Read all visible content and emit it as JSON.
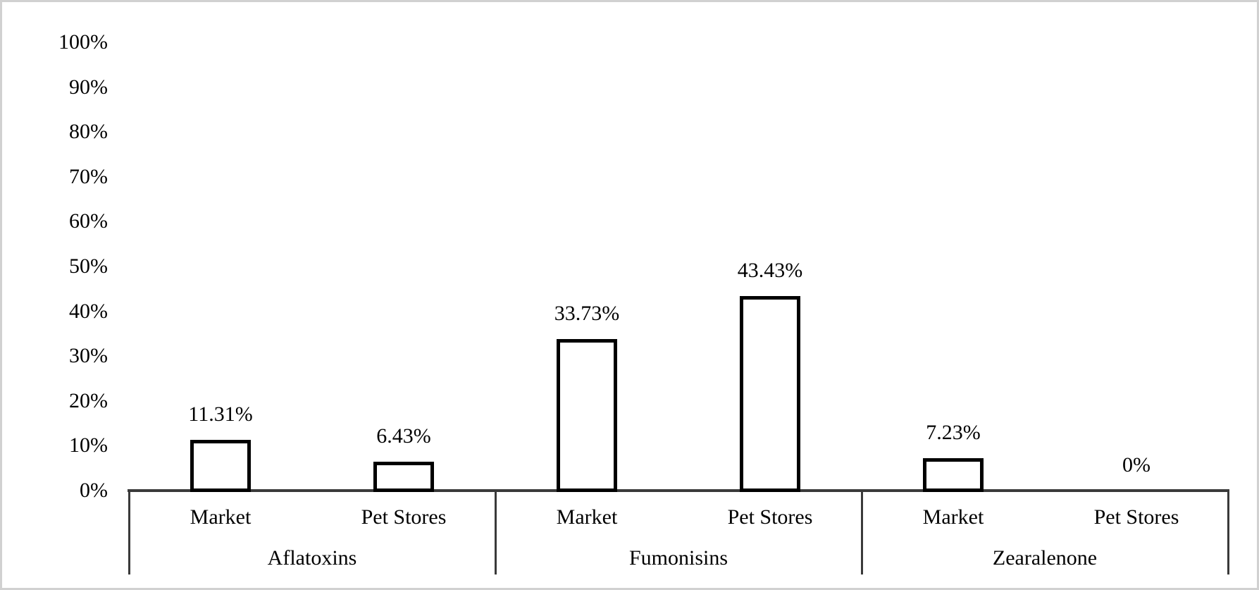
{
  "chart_data": {
    "type": "bar",
    "title": "",
    "xlabel": "",
    "ylabel": "",
    "y_axis": {
      "min": 0,
      "max": 100,
      "tick_step": 10,
      "tick_labels": [
        "100%",
        "90%",
        "80%",
        "70%",
        "60%",
        "50%",
        "40%",
        "30%",
        "20%",
        "10%",
        "0%"
      ],
      "grid": false
    },
    "legend": null,
    "sub_categories": [
      "Market",
      "Pet Stores"
    ],
    "groups": [
      {
        "label": "Aflatoxins",
        "bars": [
          {
            "category": "Market",
            "value": 11.31,
            "data_label": "11.31%"
          },
          {
            "category": "Pet Stores",
            "value": 6.43,
            "data_label": "6.43%"
          }
        ]
      },
      {
        "label": "Fumonisins",
        "bars": [
          {
            "category": "Market",
            "value": 33.73,
            "data_label": "33.73%"
          },
          {
            "category": "Pet Stores",
            "value": 43.43,
            "data_label": "43.43%"
          }
        ]
      },
      {
        "label": "Zearalenone",
        "bars": [
          {
            "category": "Market",
            "value": 7.23,
            "data_label": "7.23%"
          },
          {
            "category": "Pet Stores",
            "value": 0,
            "data_label": "0%"
          }
        ]
      }
    ],
    "colors": {
      "bar_fill": "#ffffff",
      "bar_border": "#000000",
      "axis_line": "#3a3a3a",
      "text": "#000000",
      "frame_border": "#d1d1d1"
    }
  }
}
